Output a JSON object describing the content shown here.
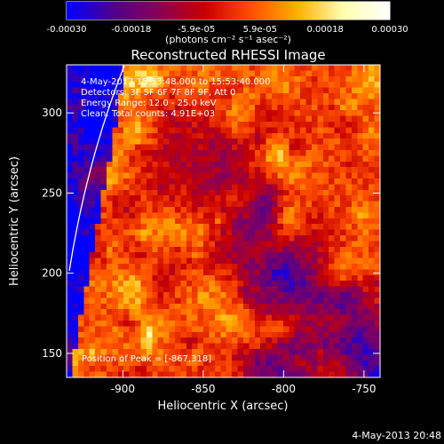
{
  "chart_data": {
    "type": "heatmap",
    "title": "Reconstructed RHESSI Image",
    "xlabel": "Heliocentric X (arcsec)",
    "ylabel": "Heliocentric Y (arcsec)",
    "xlim": [
      -935,
      -740
    ],
    "ylim": [
      135,
      330
    ],
    "x_ticks": [
      {
        "value": -900,
        "label": "-900"
      },
      {
        "value": -850,
        "label": "-850"
      },
      {
        "value": -800,
        "label": "-800"
      },
      {
        "value": -750,
        "label": "-750"
      }
    ],
    "y_ticks": [
      {
        "value": 150,
        "label": "150"
      },
      {
        "value": 200,
        "label": "200"
      },
      {
        "value": 250,
        "label": "250"
      },
      {
        "value": 300,
        "label": "300"
      }
    ],
    "annotations": [
      "4-May-2013 15:53:48.000 to 15:53:40.000",
      "Detectors: 3F 5F 6F 7F 8F 9F, Att 0",
      "Energy Range: 12.0 - 25.0 keV",
      "Clean:   Total counts: 4.91E+03"
    ],
    "peak": {
      "x": -867,
      "y": 318
    },
    "peak_label": "Position of Peak = [-867,318]",
    "timestamp": "4-May-2013 20:48",
    "colorbar": {
      "label": "(photons cm⁻² s⁻¹ asec⁻²)",
      "range": [
        -0.0003,
        0.0003
      ],
      "tick_labels_bottom": [
        "-0.00030",
        "-0.00018",
        "0.00018",
        "0.00030"
      ],
      "tick_labels_top": [
        "-5.9e-05",
        "5.9e-05"
      ],
      "tick_values_bottom": [
        -0.0003,
        -0.00018,
        0.00018,
        0.0003
      ],
      "tick_values_top": [
        -5.9e-05,
        5.9e-05
      ],
      "colors": [
        "#0000ff",
        "#500090",
        "#8a0055",
        "#c80000",
        "#ff5000",
        "#ffb000",
        "#ffffb0",
        "#ffffff"
      ]
    },
    "grid": false
  }
}
